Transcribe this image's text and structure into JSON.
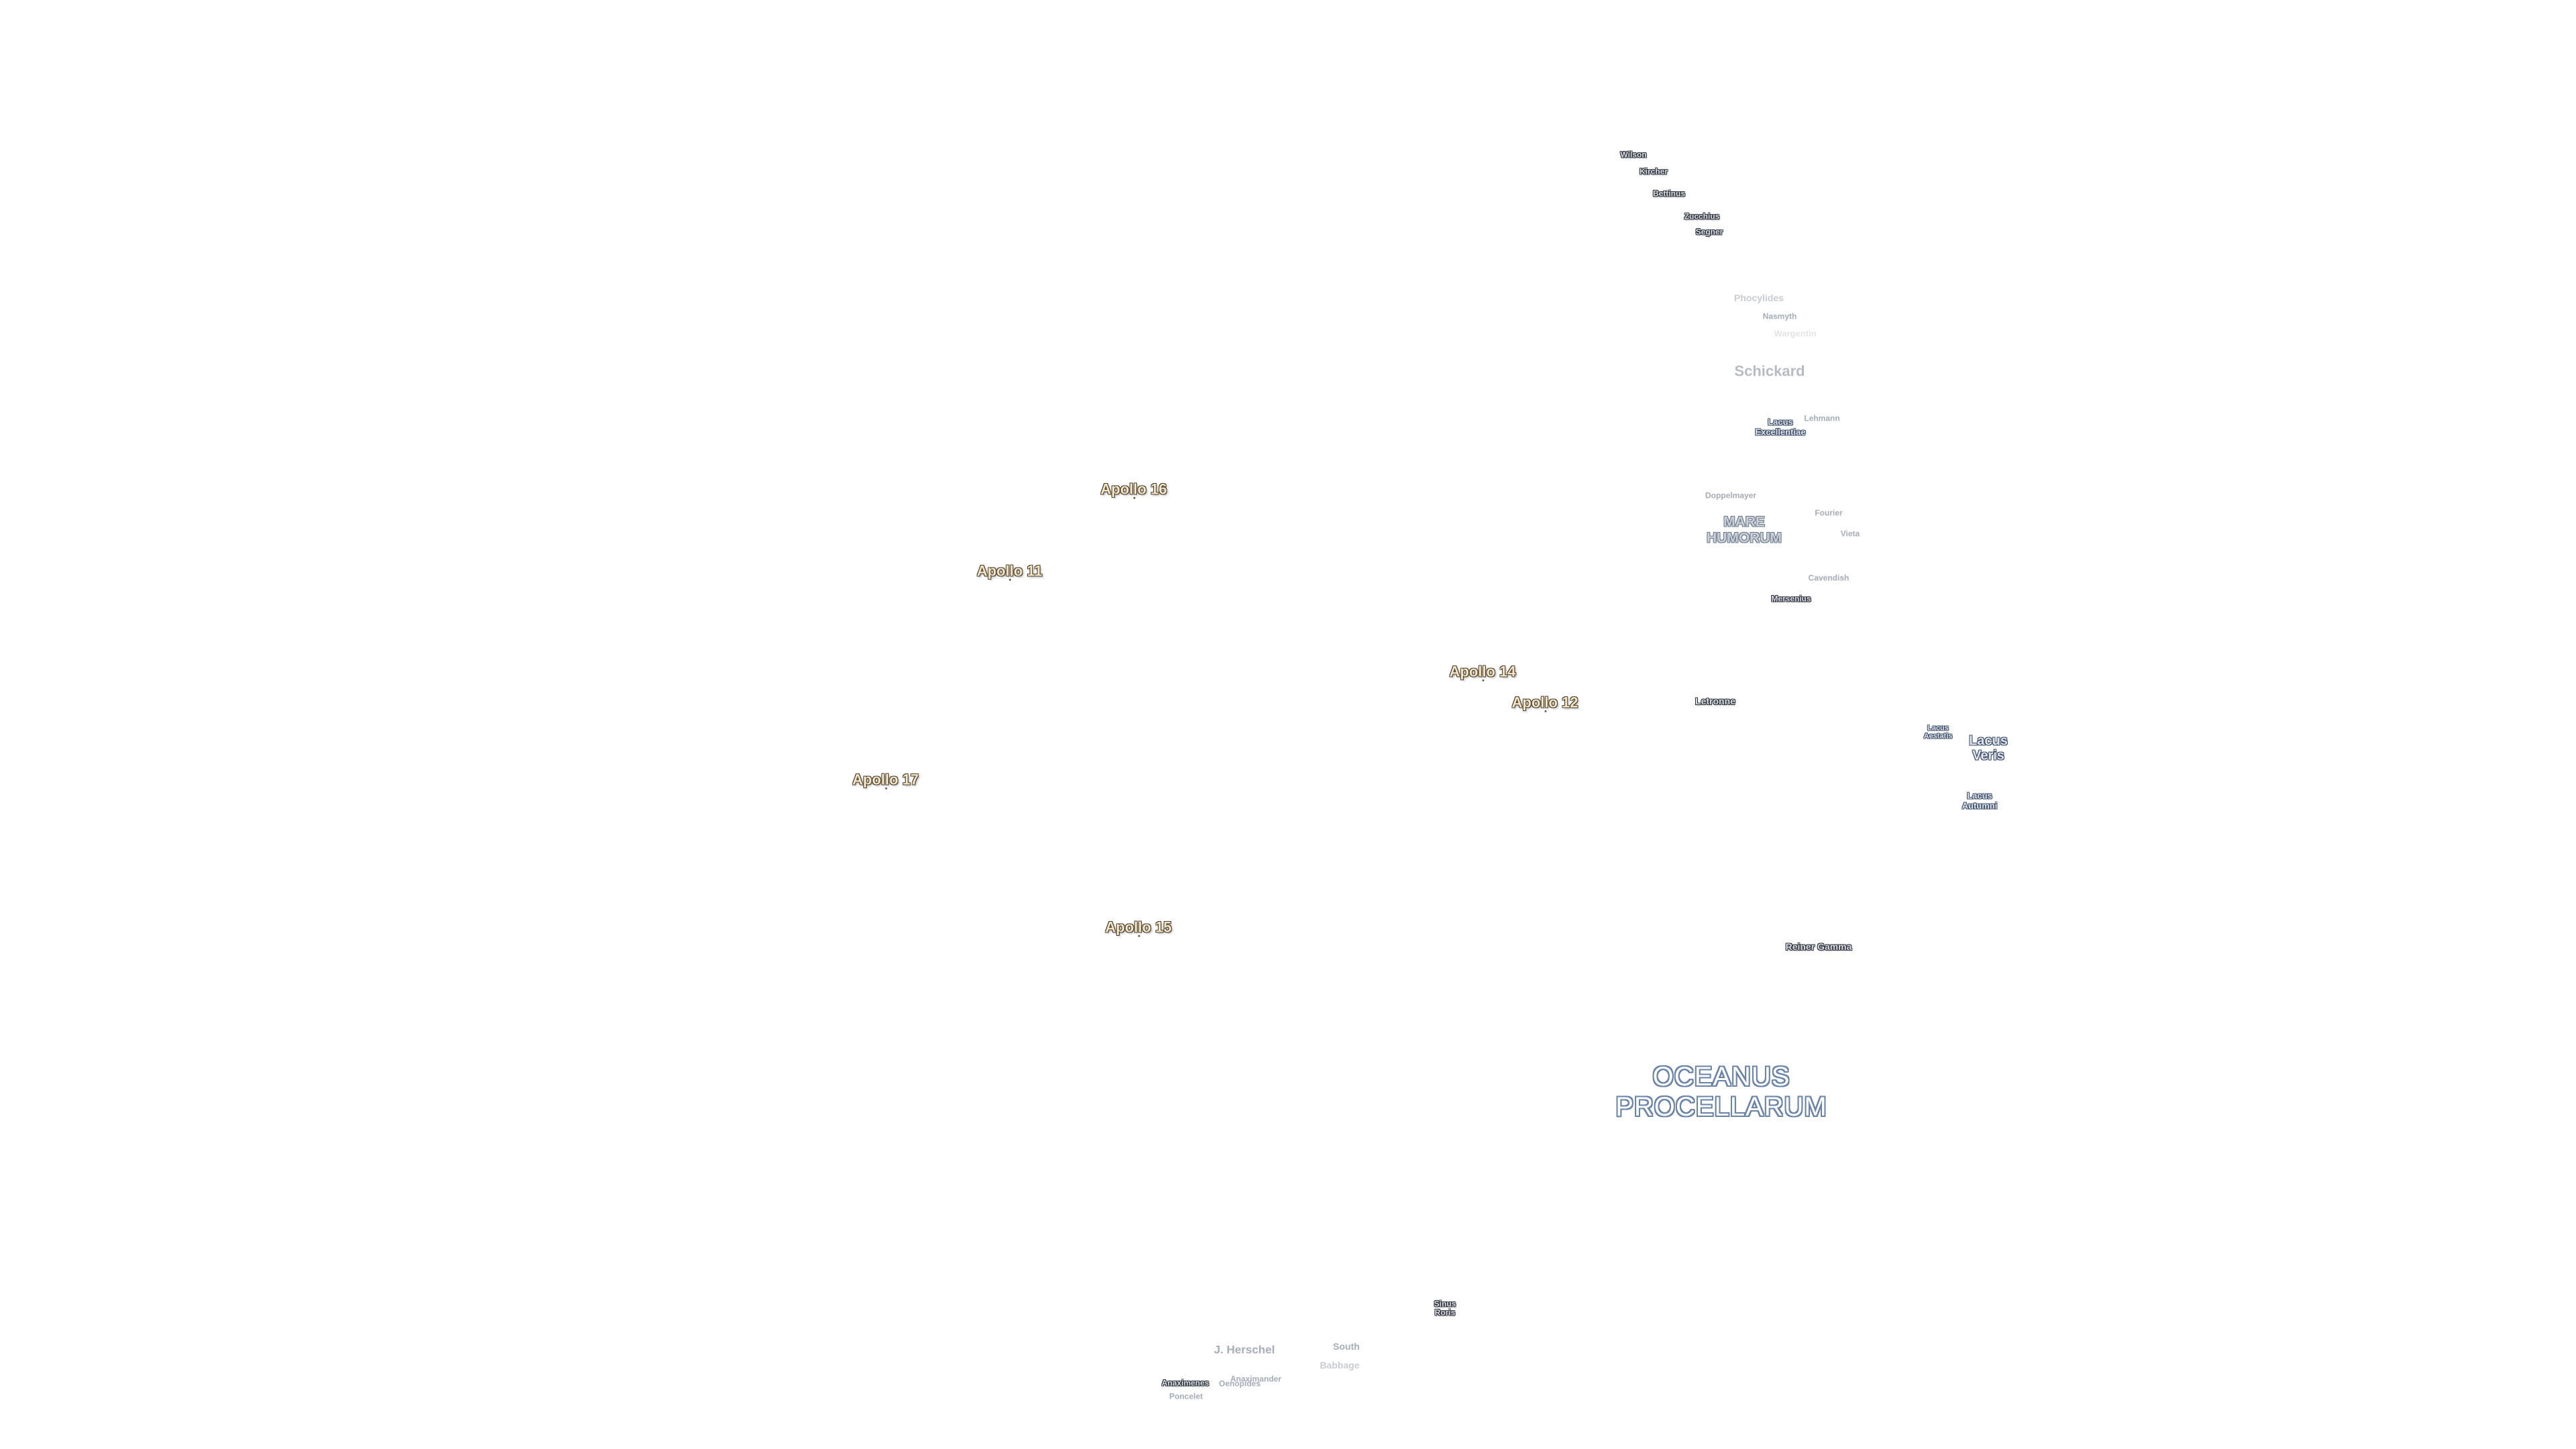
{
  "map": {
    "apollo_sites": {
      "apollo_16": "Apollo 16",
      "apollo_11": "Apollo 11",
      "apollo_14": "Apollo 14",
      "apollo_12": "Apollo 12",
      "apollo_17": "Apollo 17",
      "apollo_15": "Apollo 15"
    },
    "craters": {
      "wilson": "Wilson",
      "kircher": "Kircher",
      "bettinus": "Bettinus",
      "zucchius": "Zucchius",
      "segner": "Segner",
      "phocylides": "Phocylides",
      "nasmyth": "Nasmyth",
      "wargentin": "Wargentin",
      "schickard": "Schickard",
      "lehmann": "Lehmann",
      "doppelmayer": "Doppelmayer",
      "fourier": "Fourier",
      "vieta": "Vieta",
      "cavendish": "Cavendish",
      "mersenius": "Mersenius",
      "letronne": "Letronne",
      "reiner_gamma": "Reiner Gamma",
      "j_herschel": "J. Herschel",
      "south": "South",
      "babbage": "Babbage",
      "anaximenes": "Anaximenes",
      "oenopides": "Oenopides",
      "anaximander": "Anaximander",
      "poncelet": "Poncelet"
    },
    "maria": {
      "mare_humorum_1": "MARE",
      "mare_humorum_2": "HUMORUM",
      "oceanus_1": "OCEANUS",
      "oceanus_2": "PROCELLARUM",
      "lacus_excellentiae_1": "Lacus",
      "lacus_excellentiae_2": "Excellentiae",
      "lacus_veris_1": "Lacus",
      "lacus_veris_2": "Veris",
      "lacus_aestatis_1": "Lacus",
      "lacus_aestatis_2": "Aestatis",
      "lacus_autumni_1": "Lacus",
      "lacus_autumni_2": "Autumni",
      "sinus_roris_1": "Sinus",
      "sinus_roris_2": "Roris"
    }
  }
}
